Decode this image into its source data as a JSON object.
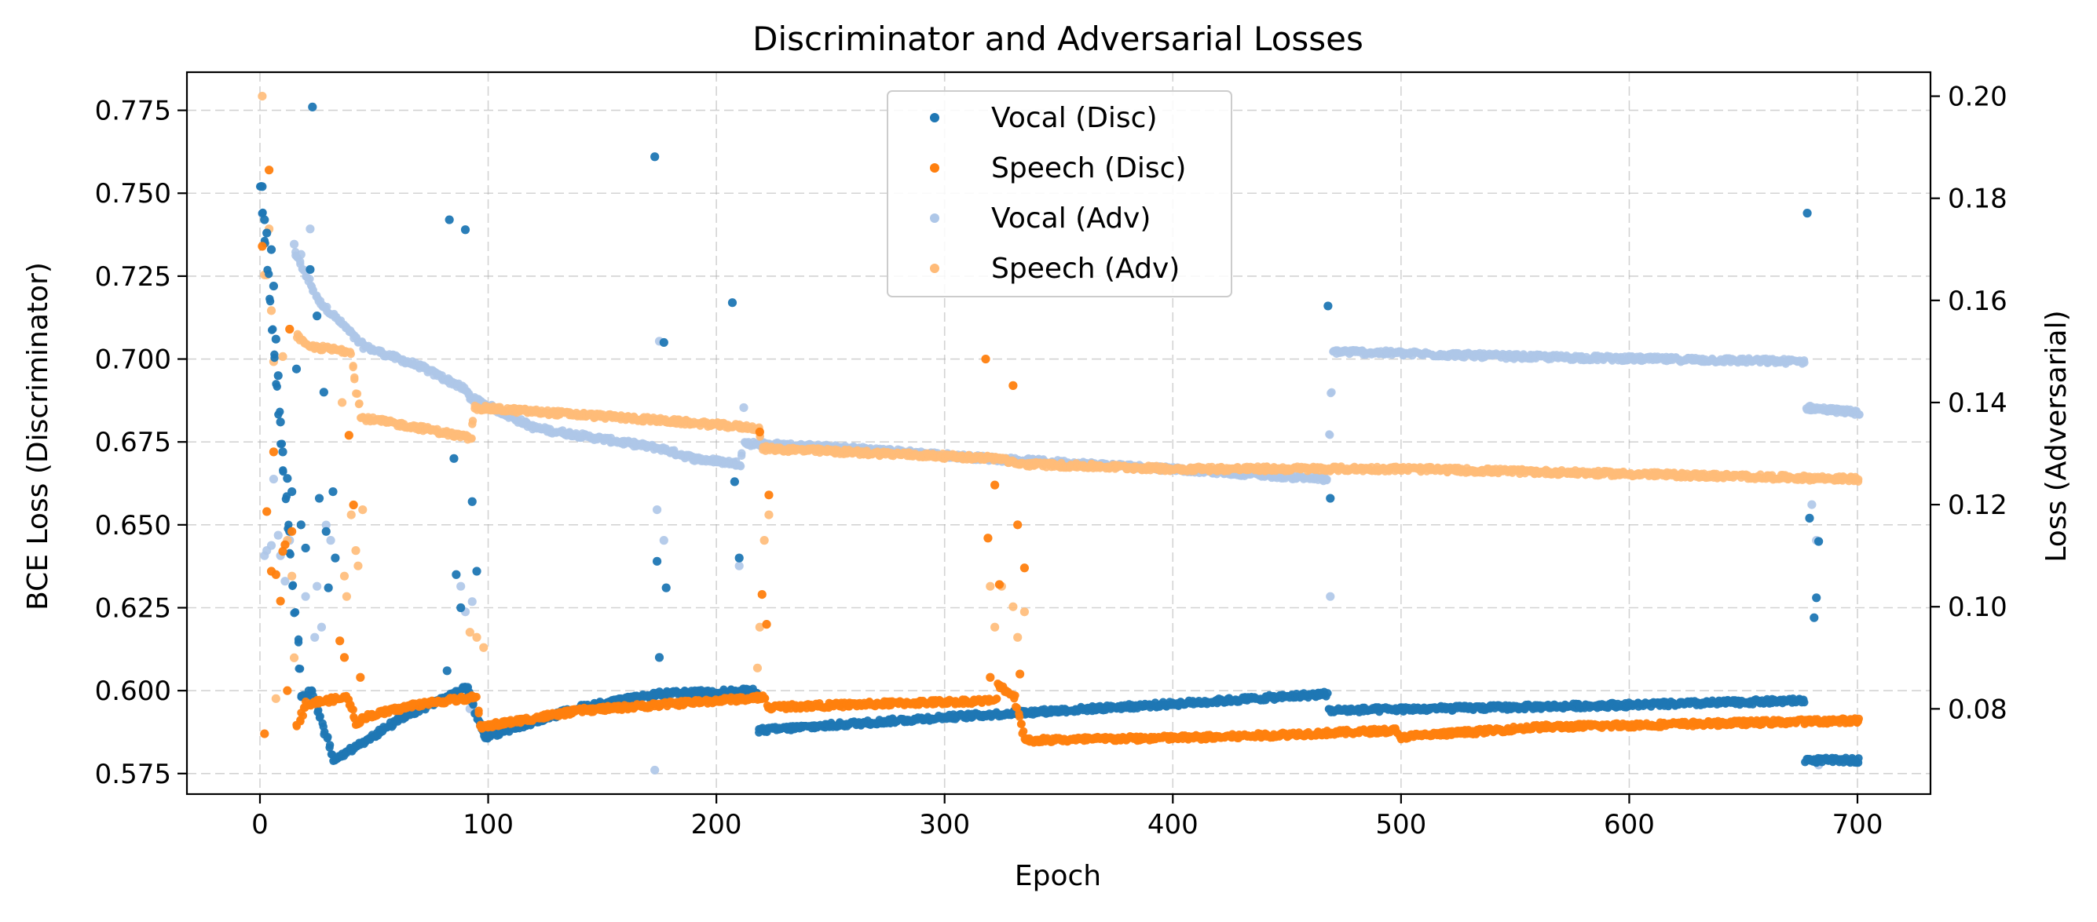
{
  "chart_data": {
    "type": "scatter",
    "title": "Discriminator and Adversarial Losses",
    "xlabel": "Epoch",
    "ylabel_left": "BCE Loss (Discriminator)",
    "ylabel_right": "Loss (Adversarial)",
    "xlim": [
      -32,
      732
    ],
    "ylim_left": [
      0.5688,
      0.7865
    ],
    "ylim_right": [
      0.0633,
      0.2047
    ],
    "x_ticks": [
      0,
      100,
      200,
      300,
      400,
      500,
      600,
      700
    ],
    "y_ticks_left": [
      0.575,
      0.6,
      0.625,
      0.65,
      0.675,
      0.7,
      0.725,
      0.75,
      0.775
    ],
    "y_ticks_right": [
      0.08,
      0.1,
      0.12,
      0.14,
      0.16,
      0.18,
      0.2
    ],
    "grid": true,
    "legend_position": "upper-center",
    "series": [
      {
        "name": "Vocal (Disc)",
        "axis": "left",
        "color": "#1f77b4",
        "trend": [
          [
            0,
            0.752
          ],
          [
            18,
            0.598
          ],
          [
            22,
            0.6
          ],
          [
            32,
            0.579
          ],
          [
            60,
            0.591
          ],
          [
            90,
            0.601
          ],
          [
            98,
            0.586
          ],
          [
            140,
            0.595
          ],
          [
            175,
            0.599
          ],
          [
            217,
            0.6
          ],
          [
            218,
            0.588
          ],
          [
            300,
            0.592
          ],
          [
            400,
            0.596
          ],
          [
            467,
            0.599
          ],
          [
            468,
            0.594
          ],
          [
            550,
            0.595
          ],
          [
            620,
            0.596
          ],
          [
            676,
            0.597
          ],
          [
            677,
            0.579
          ],
          [
            700,
            0.579
          ]
        ],
        "outliers": [
          [
            1,
            0.752
          ],
          [
            2,
            0.742
          ],
          [
            3,
            0.738
          ],
          [
            5,
            0.733
          ],
          [
            6,
            0.722
          ],
          [
            7,
            0.706
          ],
          [
            8,
            0.695
          ],
          [
            9,
            0.681
          ],
          [
            10,
            0.672
          ],
          [
            12,
            0.664
          ],
          [
            13,
            0.648
          ],
          [
            14,
            0.66
          ],
          [
            16,
            0.697
          ],
          [
            18,
            0.65
          ],
          [
            20,
            0.643
          ],
          [
            22,
            0.727
          ],
          [
            23,
            0.776
          ],
          [
            25,
            0.713
          ],
          [
            26,
            0.658
          ],
          [
            28,
            0.69
          ],
          [
            29,
            0.648
          ],
          [
            30,
            0.631
          ],
          [
            32,
            0.66
          ],
          [
            33,
            0.64
          ],
          [
            82,
            0.606
          ],
          [
            83,
            0.742
          ],
          [
            85,
            0.67
          ],
          [
            86,
            0.635
          ],
          [
            88,
            0.625
          ],
          [
            90,
            0.739
          ],
          [
            91,
            0.601
          ],
          [
            93,
            0.657
          ],
          [
            95,
            0.636
          ],
          [
            173,
            0.761
          ],
          [
            174,
            0.639
          ],
          [
            175,
            0.61
          ],
          [
            177,
            0.705
          ],
          [
            178,
            0.631
          ],
          [
            207,
            0.717
          ],
          [
            208,
            0.663
          ],
          [
            210,
            0.64
          ],
          [
            468,
            0.716
          ],
          [
            469,
            0.658
          ],
          [
            678,
            0.744
          ],
          [
            679,
            0.652
          ],
          [
            681,
            0.622
          ],
          [
            682,
            0.628
          ],
          [
            683,
            0.645
          ]
        ]
      },
      {
        "name": "Speech (Disc)",
        "axis": "left",
        "color": "#ff7f0e",
        "trend": [
          [
            16,
            0.59
          ],
          [
            20,
            0.596
          ],
          [
            38,
            0.598
          ],
          [
            42,
            0.59
          ],
          [
            45,
            0.592
          ],
          [
            70,
            0.596
          ],
          [
            94,
            0.598
          ],
          [
            96,
            0.589
          ],
          [
            140,
            0.594
          ],
          [
            200,
            0.597
          ],
          [
            221,
            0.598
          ],
          [
            222,
            0.595
          ],
          [
            270,
            0.596
          ],
          [
            322,
            0.597
          ],
          [
            323,
            0.602
          ],
          [
            330,
            0.598
          ],
          [
            335,
            0.585
          ],
          [
            420,
            0.586
          ],
          [
            497,
            0.588
          ],
          [
            499,
            0.586
          ],
          [
            560,
            0.589
          ],
          [
            700,
            0.591
          ]
        ],
        "outliers": [
          [
            1,
            0.734
          ],
          [
            2,
            0.587
          ],
          [
            3,
            0.654
          ],
          [
            4,
            0.757
          ],
          [
            5,
            0.636
          ],
          [
            6,
            0.672
          ],
          [
            7,
            0.635
          ],
          [
            9,
            0.627
          ],
          [
            10,
            0.642
          ],
          [
            11,
            0.644
          ],
          [
            12,
            0.6
          ],
          [
            13,
            0.709
          ],
          [
            14,
            0.648
          ],
          [
            35,
            0.615
          ],
          [
            37,
            0.61
          ],
          [
            39,
            0.677
          ],
          [
            41,
            0.656
          ],
          [
            44,
            0.604
          ],
          [
            219,
            0.678
          ],
          [
            220,
            0.629
          ],
          [
            222,
            0.62
          ],
          [
            223,
            0.659
          ],
          [
            318,
            0.7
          ],
          [
            319,
            0.646
          ],
          [
            320,
            0.604
          ],
          [
            322,
            0.662
          ],
          [
            324,
            0.632
          ],
          [
            330,
            0.692
          ],
          [
            332,
            0.65
          ],
          [
            333,
            0.605
          ],
          [
            335,
            0.637
          ]
        ]
      },
      {
        "name": "Vocal (Adv)",
        "axis": "right",
        "color": "#aec7e8",
        "trend": [
          [
            15,
            0.169
          ],
          [
            22,
            0.163
          ],
          [
            25,
            0.16
          ],
          [
            32,
            0.157
          ],
          [
            45,
            0.151
          ],
          [
            70,
            0.147
          ],
          [
            88,
            0.143
          ],
          [
            92,
            0.141
          ],
          [
            120,
            0.135
          ],
          [
            175,
            0.131
          ],
          [
            190,
            0.129
          ],
          [
            210,
            0.128
          ],
          [
            212,
            0.132
          ],
          [
            260,
            0.131
          ],
          [
            320,
            0.129
          ],
          [
            400,
            0.127
          ],
          [
            467,
            0.125
          ],
          [
            470,
            0.15
          ],
          [
            550,
            0.149
          ],
          [
            676,
            0.148
          ],
          [
            677,
            0.139
          ],
          [
            700,
            0.138
          ]
        ],
        "outliers": [
          [
            1,
            0.177
          ],
          [
            2,
            0.11
          ],
          [
            3,
            0.111
          ],
          [
            5,
            0.112
          ],
          [
            6,
            0.125
          ],
          [
            8,
            0.114
          ],
          [
            9,
            0.11
          ],
          [
            11,
            0.105
          ],
          [
            13,
            0.113
          ],
          [
            15,
            0.171
          ],
          [
            18,
            0.169
          ],
          [
            20,
            0.102
          ],
          [
            22,
            0.174
          ],
          [
            24,
            0.094
          ],
          [
            25,
            0.104
          ],
          [
            27,
            0.096
          ],
          [
            29,
            0.116
          ],
          [
            31,
            0.113
          ],
          [
            88,
            0.104
          ],
          [
            90,
            0.099
          ],
          [
            92,
            0.08
          ],
          [
            93,
            0.101
          ],
          [
            173,
            0.068
          ],
          [
            174,
            0.119
          ],
          [
            175,
            0.152
          ],
          [
            177,
            0.113
          ],
          [
            209,
            0.083
          ],
          [
            210,
            0.108
          ],
          [
            212,
            0.139
          ],
          [
            469,
            0.102
          ],
          [
            680,
            0.12
          ],
          [
            682,
            0.113
          ],
          [
            683,
            0.069
          ]
        ]
      },
      {
        "name": "Speech (Adv)",
        "axis": "right",
        "color": "#ffbb78",
        "trend": [
          [
            16,
            0.153
          ],
          [
            20,
            0.151
          ],
          [
            39,
            0.15
          ],
          [
            44,
            0.137
          ],
          [
            70,
            0.135
          ],
          [
            92,
            0.133
          ],
          [
            94,
            0.139
          ],
          [
            160,
            0.137
          ],
          [
            218,
            0.135
          ],
          [
            220,
            0.131
          ],
          [
            325,
            0.129
          ],
          [
            330,
            0.128
          ],
          [
            400,
            0.127
          ],
          [
            500,
            0.127
          ],
          [
            600,
            0.126
          ],
          [
            700,
            0.125
          ]
        ],
        "outliers": [
          [
            1,
            0.2
          ],
          [
            2,
            0.165
          ],
          [
            3,
            0.165
          ],
          [
            4,
            0.174
          ],
          [
            5,
            0.158
          ],
          [
            6,
            0.148
          ],
          [
            7,
            0.082
          ],
          [
            10,
            0.149
          ],
          [
            12,
            0.113
          ],
          [
            14,
            0.106
          ],
          [
            15,
            0.09
          ],
          [
            36,
            0.14
          ],
          [
            37,
            0.106
          ],
          [
            38,
            0.102
          ],
          [
            40,
            0.118
          ],
          [
            42,
            0.111
          ],
          [
            43,
            0.108
          ],
          [
            45,
            0.119
          ],
          [
            92,
            0.095
          ],
          [
            95,
            0.094
          ],
          [
            98,
            0.092
          ],
          [
            218,
            0.088
          ],
          [
            219,
            0.096
          ],
          [
            221,
            0.113
          ],
          [
            223,
            0.118
          ],
          [
            320,
            0.104
          ],
          [
            322,
            0.096
          ],
          [
            325,
            0.104
          ],
          [
            330,
            0.1
          ],
          [
            332,
            0.094
          ],
          [
            335,
            0.099
          ]
        ]
      }
    ]
  }
}
